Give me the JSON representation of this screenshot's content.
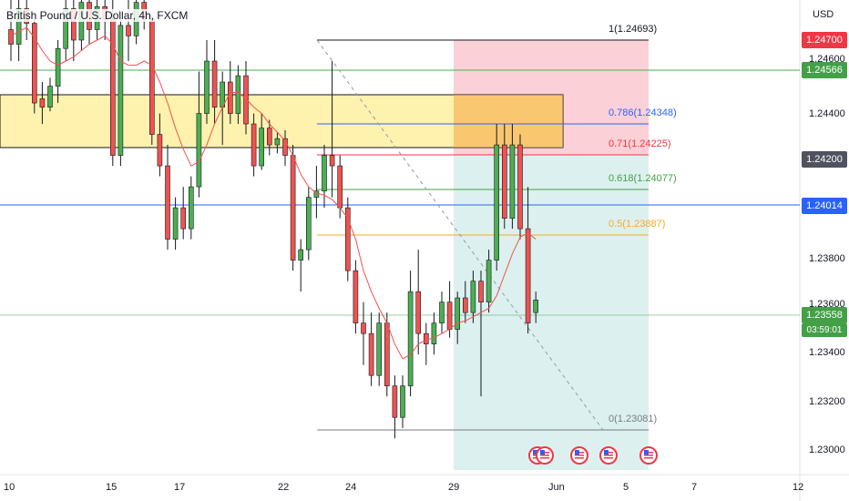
{
  "symbol": {
    "title": "British Pound / U.S. Dollar, 4h, FXCM",
    "currency": "USD"
  },
  "colors": {
    "bull": "#26a69a",
    "bull_candle": "#4caf50",
    "bear": "#ef5350",
    "sma": "#ef5350",
    "zone_fill": "#fff1a6",
    "blue_line": "#2962ff",
    "green_line": "#4caf50"
  },
  "price_axis": {
    "labels": [
      "1.24600",
      "1.24400",
      "1.23800",
      "1.23600",
      "1.23400",
      "1.23200",
      "1.23000"
    ],
    "tags": [
      {
        "name": "red-price-tag",
        "text": "1.24700",
        "color": "#f23645"
      },
      {
        "name": "green-price-tag",
        "text": "1.24566",
        "color": "#43a047"
      },
      {
        "name": "gray-price-tag",
        "text": "1.24200",
        "color": "#50535e"
      },
      {
        "name": "blue-price-tag",
        "text": "1.24014",
        "color": "#2962ff"
      },
      {
        "name": "current-price-tag",
        "text": "1.23558",
        "color": "#43a047"
      }
    ],
    "countdown": "03:59:01"
  },
  "time_axis": {
    "labels": [
      "10",
      "15",
      "17",
      "22",
      "24",
      "29",
      "Jun",
      "5",
      "7",
      "12"
    ]
  },
  "fibonacci": [
    {
      "text": "1(1.24693)",
      "color": "#131722"
    },
    {
      "text": "0.786(1.24348)",
      "color": "#2962ff"
    },
    {
      "text": "0.71(1.24225)",
      "color": "#f23645"
    },
    {
      "text": "0.618(1.24077)",
      "color": "#43a047"
    },
    {
      "text": "0.5(1.23887)",
      "color": "#f9a825"
    },
    {
      "text": "0(1.23081)",
      "color": "#787b86"
    }
  ],
  "events": {
    "icon": "us-flag-icon",
    "count": 5
  },
  "chart_data": {
    "type": "candlestick",
    "title": "British Pound / U.S. Dollar, 4h, FXCM",
    "ylim": [
      1.2294,
      1.248
    ],
    "candles": [
      [
        1.2485,
        1.25,
        1.247,
        1.2478
      ],
      [
        1.2478,
        1.25,
        1.247,
        1.2495
      ],
      [
        1.2495,
        1.25,
        1.248,
        1.2488
      ],
      [
        1.2488,
        1.249,
        1.2445,
        1.245
      ],
      [
        1.2452,
        1.246,
        1.244,
        1.2448
      ],
      [
        1.2448,
        1.2462,
        1.2446,
        1.2458
      ],
      [
        1.2458,
        1.248,
        1.245,
        1.2476
      ],
      [
        1.2476,
        1.25,
        1.247,
        1.2495
      ],
      [
        1.2495,
        1.25,
        1.247,
        1.248
      ],
      [
        1.248,
        1.25,
        1.2475,
        1.2498
      ],
      [
        1.2498,
        1.25,
        1.2478,
        1.2485
      ],
      [
        1.2485,
        1.25,
        1.248,
        1.2496
      ],
      [
        1.2496,
        1.25,
        1.248,
        1.249
      ],
      [
        1.249,
        1.25,
        1.242,
        1.2425
      ],
      [
        1.2425,
        1.249,
        1.242,
        1.2487
      ],
      [
        1.2487,
        1.25,
        1.247,
        1.2482
      ],
      [
        1.2482,
        1.25,
        1.2478,
        1.2498
      ],
      [
        1.2498,
        1.25,
        1.2485,
        1.249
      ],
      [
        1.249,
        1.2492,
        1.243,
        1.2435
      ],
      [
        1.2435,
        1.2445,
        1.2415,
        1.242
      ],
      [
        1.242,
        1.243,
        1.238,
        1.2385
      ],
      [
        1.2385,
        1.2405,
        1.238,
        1.24
      ],
      [
        1.24,
        1.241,
        1.2385,
        1.239
      ],
      [
        1.239,
        1.2415,
        1.2385,
        1.241
      ],
      [
        1.241,
        1.2465,
        1.2405,
        1.2445
      ],
      [
        1.2445,
        1.248,
        1.244,
        1.247
      ],
      [
        1.247,
        1.248,
        1.244,
        1.2448
      ],
      [
        1.2448,
        1.2465,
        1.243,
        1.246
      ],
      [
        1.246,
        1.247,
        1.244,
        1.2445
      ],
      [
        1.2445,
        1.2468,
        1.244,
        1.2463
      ],
      [
        1.2463,
        1.247,
        1.2435,
        1.244
      ],
      [
        1.244,
        1.2445,
        1.2415,
        1.242
      ],
      [
        1.242,
        1.2445,
        1.2418,
        1.2438
      ],
      [
        1.2438,
        1.2442,
        1.2425,
        1.243
      ],
      [
        1.243,
        1.2436,
        1.2426,
        1.2433
      ],
      [
        1.2433,
        1.2437,
        1.242,
        1.2425
      ],
      [
        1.2425,
        1.243,
        1.237,
        1.2375
      ],
      [
        1.2375,
        1.2385,
        1.236,
        1.238
      ],
      [
        1.238,
        1.241,
        1.2375,
        1.2405
      ],
      [
        1.2405,
        1.242,
        1.2395,
        1.2408
      ],
      [
        1.2408,
        1.243,
        1.24,
        1.2425
      ],
      [
        1.2425,
        1.247,
        1.2405,
        1.242
      ],
      [
        1.242,
        1.2425,
        1.2395,
        1.24
      ],
      [
        1.24,
        1.2405,
        1.2365,
        1.237
      ],
      [
        1.237,
        1.2375,
        1.234,
        1.2345
      ],
      [
        1.2345,
        1.2355,
        1.2325,
        1.234
      ],
      [
        1.234,
        1.235,
        1.2315,
        1.232
      ],
      [
        1.232,
        1.235,
        1.2315,
        1.2345
      ],
      [
        1.2345,
        1.235,
        1.231,
        1.2315
      ],
      [
        1.2315,
        1.232,
        1.229,
        1.23
      ],
      [
        1.23,
        1.232,
        1.2295,
        1.2315
      ],
      [
        1.2315,
        1.237,
        1.231,
        1.236
      ],
      [
        1.236,
        1.238,
        1.233,
        1.234
      ],
      [
        1.234,
        1.2345,
        1.2325,
        1.2335
      ],
      [
        1.2335,
        1.235,
        1.233,
        1.2345
      ],
      [
        1.2345,
        1.236,
        1.234,
        1.2355
      ],
      [
        1.2355,
        1.2365,
        1.2338,
        1.2342
      ],
      [
        1.2342,
        1.236,
        1.2335,
        1.2357
      ],
      [
        1.2357,
        1.2365,
        1.2345,
        1.235
      ],
      [
        1.235,
        1.237,
        1.2345,
        1.2365
      ],
      [
        1.2365,
        1.237,
        1.231,
        1.2355
      ],
      [
        1.2355,
        1.238,
        1.235,
        1.2375
      ],
      [
        1.2375,
        1.244,
        1.237,
        1.243
      ],
      [
        1.243,
        1.244,
        1.239,
        1.2395
      ],
      [
        1.2395,
        1.244,
        1.239,
        1.243
      ],
      [
        1.243,
        1.2435,
        1.2385,
        1.239
      ],
      [
        1.239,
        1.241,
        1.234,
        1.2345
      ],
      [
        1.235,
        1.236,
        1.2345,
        1.2356
      ]
    ],
    "moving_average": [
      1.2482,
      1.2484,
      1.2486,
      1.2481,
      1.2475,
      1.247,
      1.2468,
      1.247,
      1.2472,
      1.2475,
      1.2478,
      1.248,
      1.2482,
      1.2478,
      1.247,
      1.2468,
      1.2468,
      1.247,
      1.2468,
      1.246,
      1.245,
      1.2438,
      1.2428,
      1.242,
      1.2422,
      1.243,
      1.244,
      1.2448,
      1.2455,
      1.2455,
      1.2452,
      1.2448,
      1.2445,
      1.244,
      1.2436,
      1.2432,
      1.2425,
      1.2416,
      1.241,
      1.2407,
      1.2406,
      1.2404,
      1.24,
      1.2395,
      1.2385,
      1.237,
      1.236,
      1.2352,
      1.2345,
      1.2335,
      1.2328,
      1.233,
      1.2335,
      1.2337,
      1.2338,
      1.234,
      1.2342,
      1.2345,
      1.2346,
      1.2348,
      1.235,
      1.2352,
      1.2358,
      1.2368,
      1.2378,
      1.2386,
      1.2388,
      1.2385
    ]
  }
}
